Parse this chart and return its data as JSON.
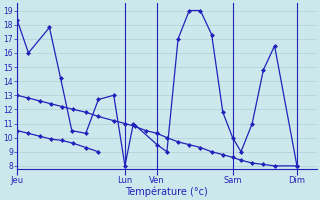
{
  "background_color": "#cce8ec",
  "grid_color": "#b0d0d4",
  "line_color": "#2222bb",
  "xlabel": "Température (°c)",
  "ylim": [
    7.8,
    19.5
  ],
  "yticks": [
    8,
    9,
    10,
    11,
    12,
    13,
    14,
    15,
    16,
    17,
    18,
    19
  ],
  "day_labels": [
    "Jeu",
    "Lun",
    "Ven",
    "Sam",
    "Dim"
  ],
  "day_positions": [
    0.0,
    0.385,
    0.5,
    0.77,
    1.0
  ],
  "xlim": [
    0.0,
    1.07
  ],
  "series": [
    {
      "x": [
        0.0,
        0.04,
        0.115,
        0.155,
        0.195,
        0.245,
        0.29,
        0.345,
        0.385,
        0.415,
        0.5,
        0.535,
        0.575,
        0.615,
        0.655,
        0.695,
        0.735,
        0.77,
        0.8,
        0.84,
        0.88,
        0.92,
        1.0
      ],
      "y": [
        18.3,
        16.0,
        17.8,
        14.2,
        10.5,
        10.3,
        12.7,
        13.0,
        8.0,
        11.0,
        9.5,
        9.0,
        17.0,
        19.0,
        19.0,
        17.3,
        11.8,
        10.0,
        9.0,
        11.0,
        14.8,
        16.5,
        8.0
      ]
    },
    {
      "x": [
        0.0,
        0.04,
        0.08,
        0.12,
        0.16,
        0.2,
        0.245,
        0.29,
        0.345,
        0.385,
        0.42,
        0.46,
        0.5
      ],
      "y": [
        13.0,
        12.8,
        12.6,
        12.4,
        12.2,
        12.0,
        11.8,
        11.5,
        11.2,
        11.0,
        10.8,
        10.5,
        10.3
      ]
    },
    {
      "x": [
        0.0,
        0.04,
        0.08,
        0.12,
        0.16,
        0.2,
        0.245,
        0.29
      ],
      "y": [
        10.5,
        10.3,
        10.1,
        9.9,
        9.8,
        9.6,
        9.3,
        9.0
      ]
    },
    {
      "x": [
        0.5,
        0.535,
        0.575,
        0.615,
        0.655,
        0.695,
        0.735,
        0.77,
        0.8,
        0.84,
        0.88,
        0.92,
        1.0
      ],
      "y": [
        10.3,
        10.0,
        9.7,
        9.5,
        9.3,
        9.0,
        8.8,
        8.6,
        8.4,
        8.2,
        8.1,
        8.0,
        8.0
      ]
    }
  ]
}
